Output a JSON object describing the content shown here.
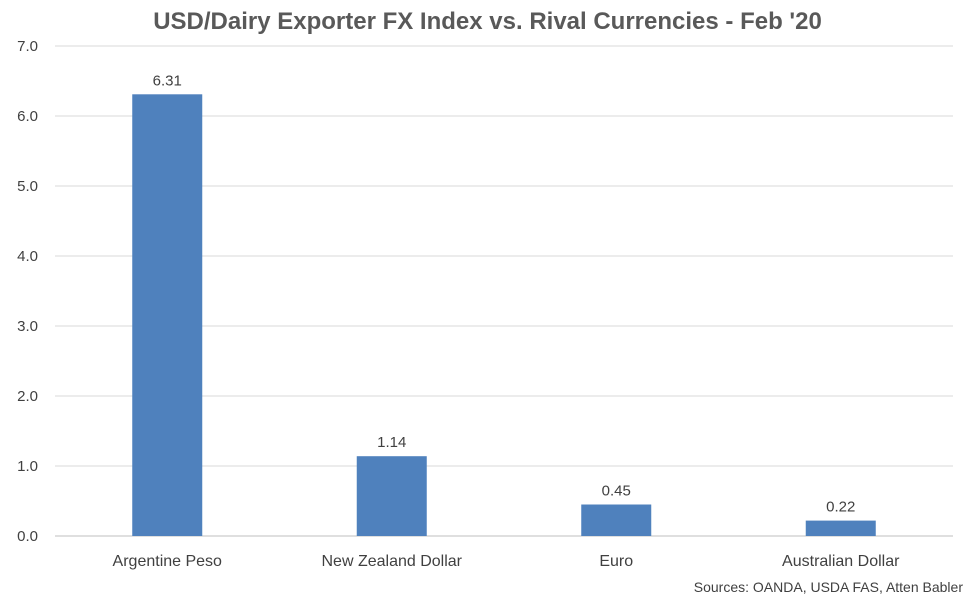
{
  "chart_data": {
    "type": "bar",
    "title": "USD/Dairy Exporter FX Index vs. Rival Currencies - Feb '20",
    "categories": [
      "Argentine Peso",
      "New Zealand Dollar",
      "Euro",
      "Australian Dollar"
    ],
    "values": [
      6.31,
      1.14,
      0.45,
      0.22
    ],
    "data_labels": [
      "6.31",
      "1.14",
      "0.45",
      "0.22"
    ],
    "ylim": [
      0,
      7
    ],
    "yticks": [
      0,
      1,
      2,
      3,
      4,
      5,
      6,
      7
    ],
    "ytick_labels": [
      "0.0",
      "1.0",
      "2.0",
      "3.0",
      "4.0",
      "5.0",
      "6.0",
      "7.0"
    ],
    "xlabel": "",
    "ylabel": "",
    "grid": true,
    "legend": "none",
    "bar_color": "#4F81BD",
    "source": "Sources: OANDA, USDA FAS, Atten Babler"
  }
}
